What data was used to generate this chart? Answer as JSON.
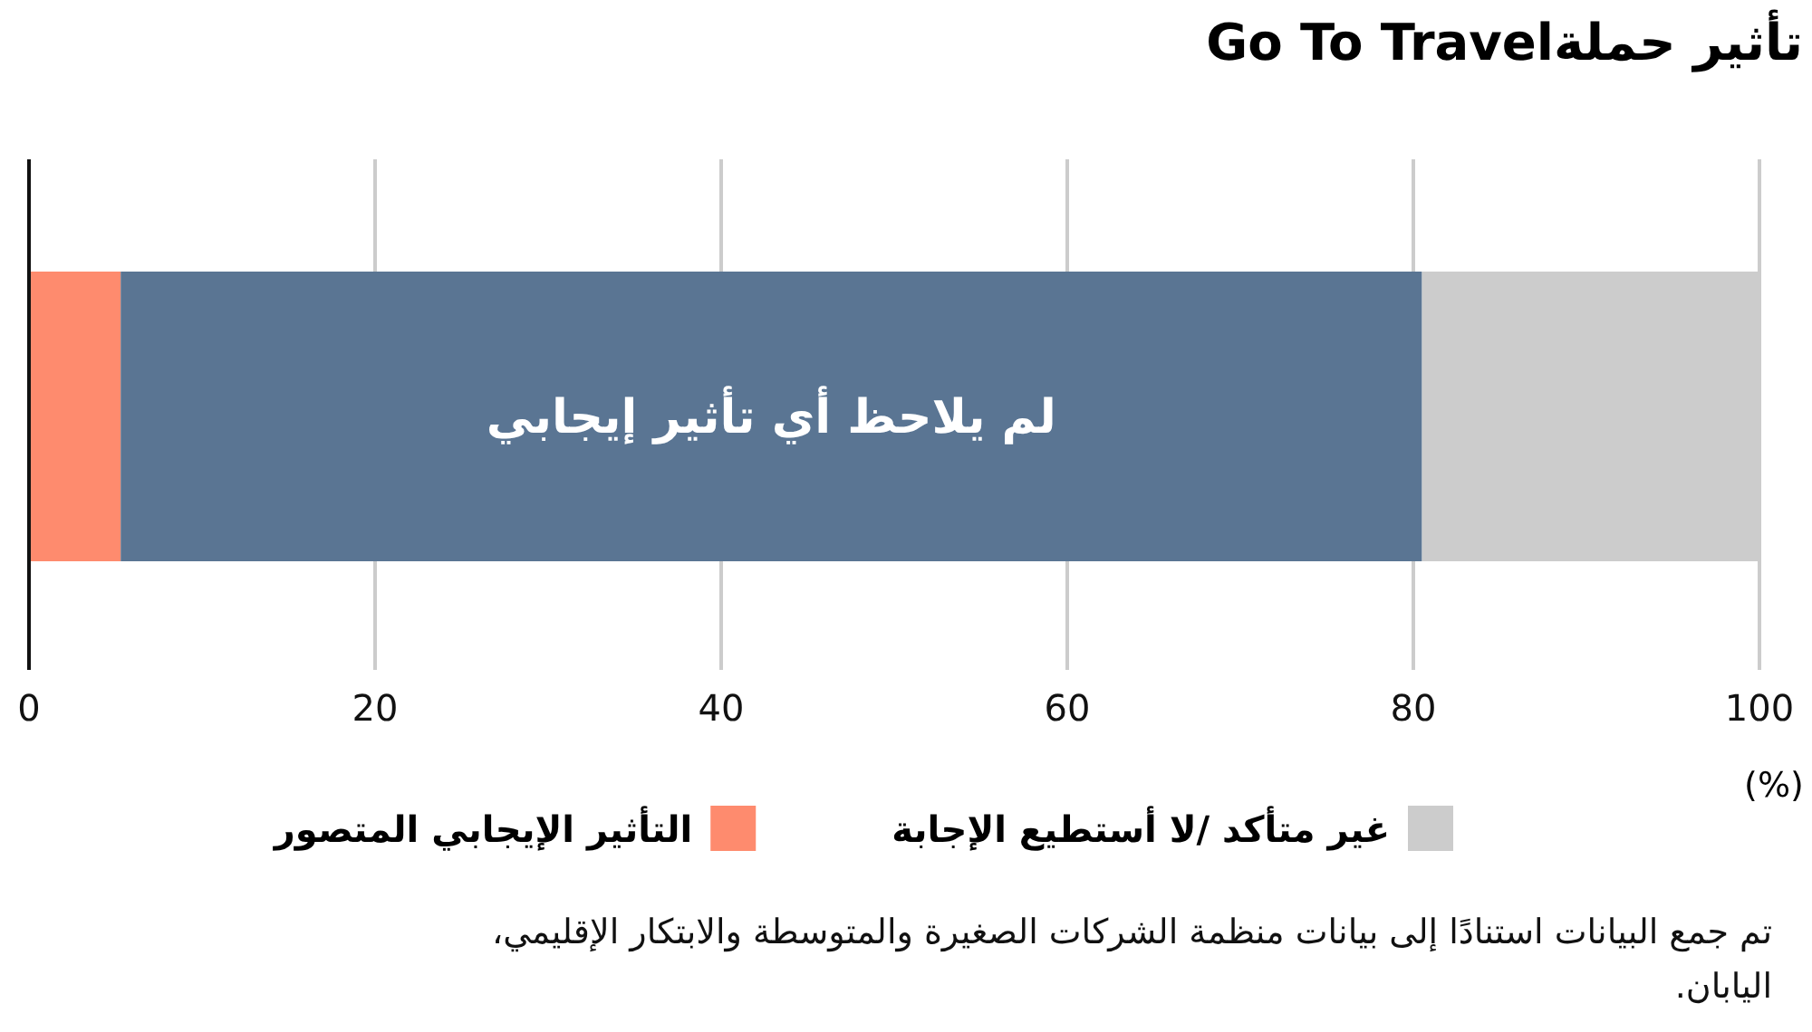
{
  "chart_data": {
    "type": "bar",
    "orientation": "horizontal",
    "stacked": true,
    "title": "تأثير حملةGo To Travel",
    "xlabel": "(%)",
    "categories": [
      null
    ],
    "series": [
      {
        "name": "التأثير الإيجابي المتصور",
        "color": "#fe8b6e",
        "values": [
          5.3
        ]
      },
      {
        "name": "لم يلاحظ أي تأثير إيجابي",
        "color": "#5a7593",
        "values": [
          75.2
        ]
      },
      {
        "name": "غير متأكد /لا أستطيع الإجابة",
        "color": "#cccccc",
        "values": [
          19.5
        ]
      }
    ],
    "xlim": [
      0,
      100
    ],
    "xticks": [
      0,
      20,
      40,
      60,
      80,
      100
    ],
    "grid": "x",
    "legend": "bottom",
    "annotations": [
      "تم جمع البيانات استنادًا إلى بيانات منظمة الشركات الصغيرة والمتوسطة والابتكار الإقليمي، اليابان."
    ]
  }
}
